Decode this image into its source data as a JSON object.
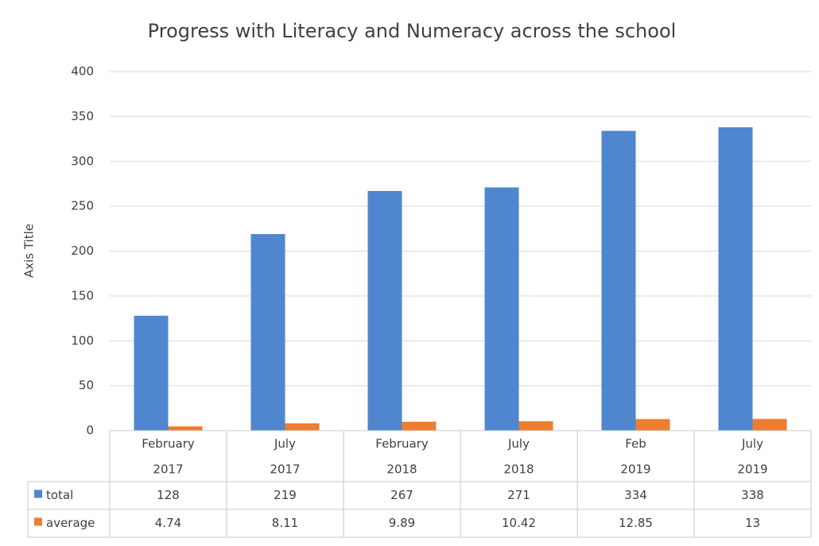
{
  "chart_data": {
    "type": "bar",
    "title": "Progress with Literacy and Numeracy across the school",
    "y_axis_title": "Axis Title",
    "categories": [
      [
        "February",
        "2017"
      ],
      [
        "July",
        "2017"
      ],
      [
        "February",
        "2018"
      ],
      [
        "July",
        "2018"
      ],
      [
        "Feb",
        "2019"
      ],
      [
        "July",
        "2019"
      ]
    ],
    "series": [
      {
        "name": "total",
        "color": "#4f86cf",
        "values": [
          128,
          219,
          267,
          271,
          334,
          338
        ]
      },
      {
        "name": "average",
        "color": "#ed7d31",
        "values": [
          4.74,
          8.11,
          9.89,
          10.42,
          12.85,
          13
        ]
      }
    ],
    "ylim": [
      0,
      400
    ],
    "yticks": [
      0,
      50,
      100,
      150,
      200,
      250,
      300,
      350,
      400
    ],
    "grid": true,
    "data_table": true
  }
}
